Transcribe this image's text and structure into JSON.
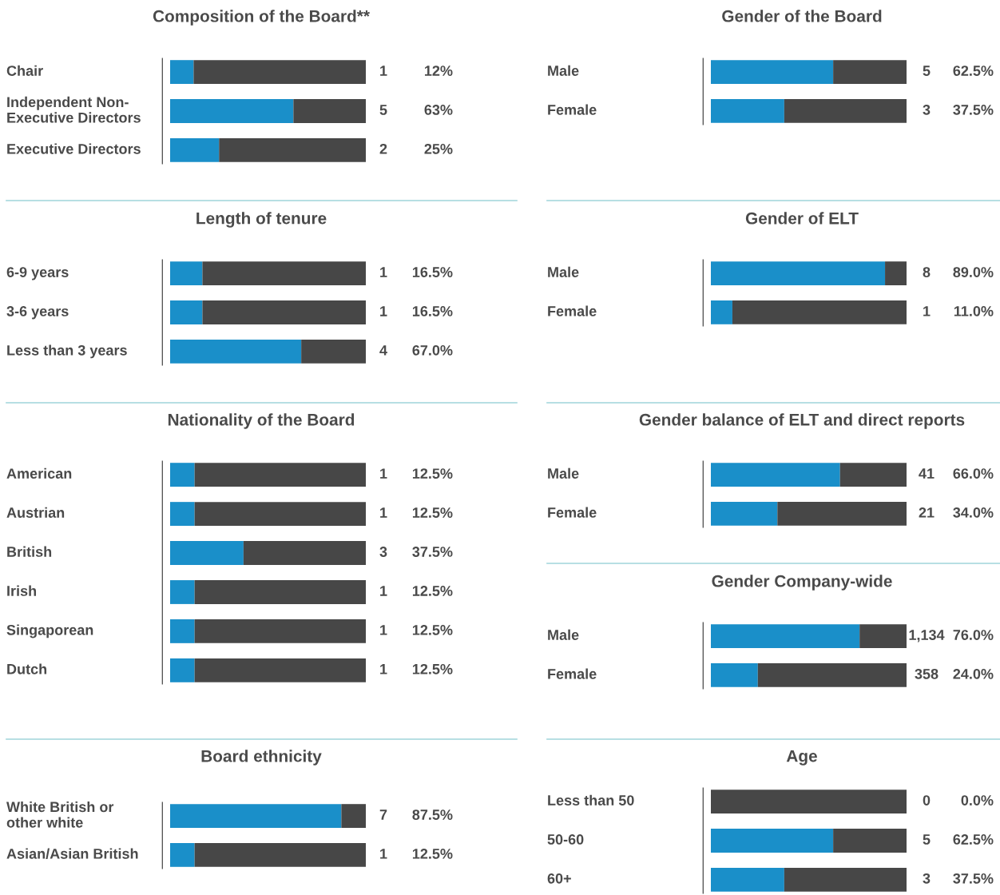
{
  "chart_data": [
    {
      "type": "bar",
      "orientation": "horizontal",
      "stacked": true,
      "xlim": [
        0,
        100
      ],
      "title": "Composition of the Board**",
      "categories": [
        "Chair",
        "Independent Non-\nExecutive Directors",
        "Executive Directors"
      ],
      "series": [
        {
          "color": "#1a8fc9",
          "values": [
            12,
            63,
            25
          ],
          "value_labels": [
            "12%",
            "63%",
            "25%"
          ]
        },
        {
          "color": "#474747",
          "values": [
            88,
            37,
            75
          ]
        }
      ],
      "annotations": [
        "1",
        "5",
        "2"
      ]
    },
    {
      "type": "bar",
      "orientation": "horizontal",
      "stacked": true,
      "xlim": [
        0,
        100
      ],
      "title": "Length of tenure",
      "categories": [
        "6-9 years",
        "3-6 years",
        "Less than 3 years"
      ],
      "series": [
        {
          "color": "#1a8fc9",
          "values": [
            16.5,
            16.5,
            67.0
          ],
          "value_labels": [
            "16.5%",
            "16.5%",
            "67.0%"
          ]
        },
        {
          "color": "#474747",
          "values": [
            83.5,
            83.5,
            33.0
          ]
        }
      ],
      "annotations": [
        "1",
        "1",
        "4"
      ]
    },
    {
      "type": "bar",
      "orientation": "horizontal",
      "stacked": true,
      "xlim": [
        0,
        100
      ],
      "title": "Nationality of the Board",
      "categories": [
        "American",
        "Austrian",
        "British",
        "Irish",
        "Singaporean",
        "Dutch"
      ],
      "series": [
        {
          "color": "#1a8fc9",
          "values": [
            12.5,
            12.5,
            37.5,
            12.5,
            12.5,
            12.5
          ],
          "value_labels": [
            "12.5%",
            "12.5%",
            "37.5%",
            "12.5%",
            "12.5%",
            "12.5%"
          ]
        },
        {
          "color": "#474747",
          "values": [
            87.5,
            87.5,
            62.5,
            87.5,
            87.5,
            87.5
          ]
        }
      ],
      "annotations": [
        "1",
        "1",
        "3",
        "1",
        "1",
        "1"
      ]
    },
    {
      "type": "bar",
      "orientation": "horizontal",
      "stacked": true,
      "xlim": [
        0,
        100
      ],
      "title": "Board ethnicity",
      "categories": [
        "White British or\nother white",
        "Asian/Asian British"
      ],
      "series": [
        {
          "color": "#1a8fc9",
          "values": [
            87.5,
            12.5
          ],
          "value_labels": [
            "87.5%",
            "12.5%"
          ]
        },
        {
          "color": "#474747",
          "values": [
            12.5,
            87.5
          ]
        }
      ],
      "annotations": [
        "7",
        "1"
      ]
    },
    {
      "type": "bar",
      "orientation": "horizontal",
      "stacked": true,
      "xlim": [
        0,
        100
      ],
      "title": "Gender of the Board",
      "categories": [
        "Male",
        "Female"
      ],
      "series": [
        {
          "color": "#1a8fc9",
          "values": [
            62.5,
            37.5
          ],
          "value_labels": [
            "62.5%",
            "37.5%"
          ]
        },
        {
          "color": "#474747",
          "values": [
            37.5,
            62.5
          ]
        }
      ],
      "annotations": [
        "5",
        "3"
      ]
    },
    {
      "type": "bar",
      "orientation": "horizontal",
      "stacked": true,
      "xlim": [
        0,
        100
      ],
      "title": "Gender of ELT",
      "categories": [
        "Male",
        "Female"
      ],
      "series": [
        {
          "color": "#1a8fc9",
          "values": [
            89.0,
            11.0
          ],
          "value_labels": [
            "89.0%",
            "11.0%"
          ]
        },
        {
          "color": "#474747",
          "values": [
            11.0,
            89.0
          ]
        }
      ],
      "annotations": [
        "8",
        "1"
      ]
    },
    {
      "type": "bar",
      "orientation": "horizontal",
      "stacked": true,
      "xlim": [
        0,
        100
      ],
      "title": "Gender balance of ELT and direct reports",
      "categories": [
        "Male",
        "Female"
      ],
      "series": [
        {
          "color": "#1a8fc9",
          "values": [
            66.0,
            34.0
          ],
          "value_labels": [
            "66.0%",
            "34.0%"
          ]
        },
        {
          "color": "#474747",
          "values": [
            34.0,
            66.0
          ]
        }
      ],
      "annotations": [
        "41",
        "21"
      ]
    },
    {
      "type": "bar",
      "orientation": "horizontal",
      "stacked": true,
      "xlim": [
        0,
        100
      ],
      "title": "Gender Company-wide",
      "categories": [
        "Male",
        "Female"
      ],
      "series": [
        {
          "color": "#1a8fc9",
          "values": [
            76.0,
            24.0
          ],
          "value_labels": [
            "76.0%",
            "24.0%"
          ]
        },
        {
          "color": "#474747",
          "values": [
            24.0,
            76.0
          ]
        }
      ],
      "annotations": [
        "1,134",
        "358"
      ]
    },
    {
      "type": "bar",
      "orientation": "horizontal",
      "stacked": true,
      "xlim": [
        0,
        100
      ],
      "title": "Age",
      "categories": [
        "Less than 50",
        "50-60",
        "60+"
      ],
      "series": [
        {
          "color": "#1a8fc9",
          "values": [
            0.0,
            62.5,
            37.5
          ],
          "value_labels": [
            "0.0%",
            "62.5%",
            "37.5%"
          ]
        },
        {
          "color": "#474747",
          "values": [
            100.0,
            37.5,
            62.5
          ]
        }
      ],
      "annotations": [
        "0",
        "5",
        "3"
      ]
    }
  ]
}
